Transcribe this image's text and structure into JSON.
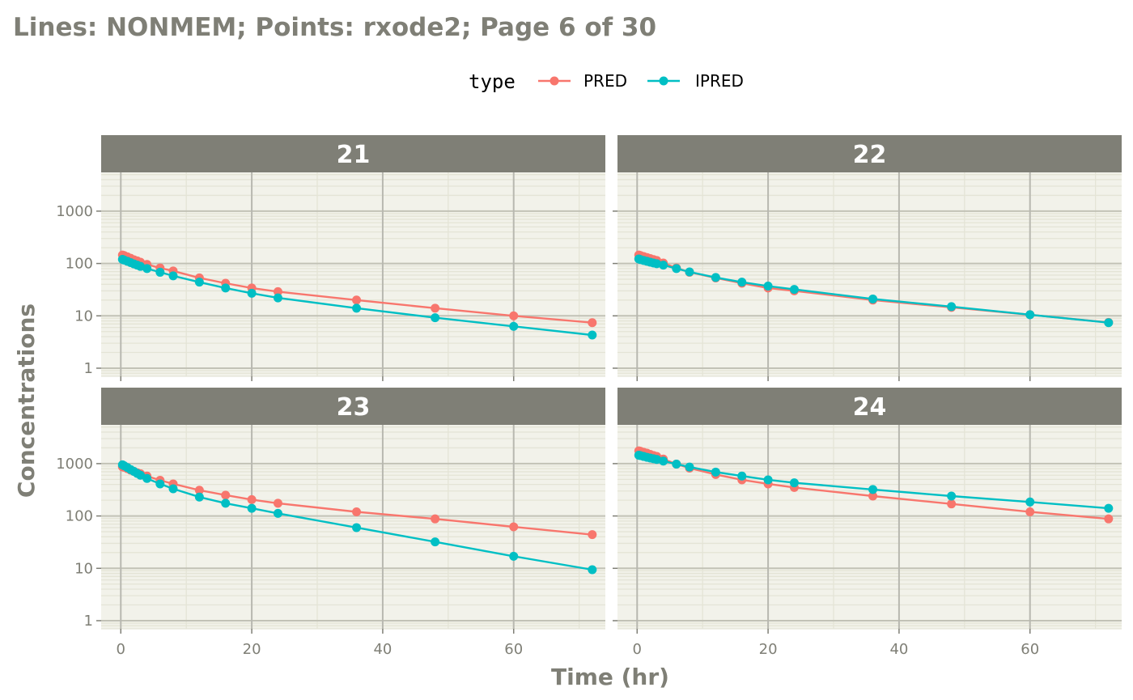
{
  "chart_data": {
    "type": "line",
    "title": "Lines: NONMEM; Points: rxode2; Page 6 of 30",
    "xlabel": "Time (hr)",
    "ylabel": "Concentrations",
    "xlim": [
      -3,
      74
    ],
    "xticks": [
      0,
      20,
      40,
      60
    ],
    "y_scale": "log10",
    "ylim": [
      0.7,
      5500
    ],
    "yticks": [
      1,
      10,
      100,
      1000
    ],
    "ytick_labels": [
      "1",
      "10",
      "100",
      "1000"
    ],
    "grid": true,
    "legend": {
      "title": "type",
      "position": "top",
      "entries": [
        {
          "label": "PRED",
          "color": "#F8766D"
        },
        {
          "label": "IPRED",
          "color": "#00BFC4"
        }
      ]
    },
    "colors": {
      "PRED": "#F8766D",
      "IPRED": "#00BFC4",
      "strip": "#7f7f76",
      "panel_bg": "#f2f2ea"
    },
    "panels": [
      {
        "id": "21",
        "x": [
          0.25,
          0.5,
          1,
          1.5,
          2,
          2.5,
          3,
          4,
          6,
          8,
          12,
          16,
          20,
          24,
          36,
          48,
          60,
          72
        ],
        "series": [
          {
            "name": "PRED",
            "values": [
              145,
              142,
              134,
              126,
              118,
              112,
              106,
              96,
              82,
              72,
              53,
              42,
              34,
              29,
              20,
              14,
              10,
              7.4
            ]
          },
          {
            "name": "IPRED",
            "values": [
              120,
              116,
              110,
              104,
              98,
              93,
              88,
              80,
              68,
              58,
              44,
              34,
              27,
              22,
              14,
              9.2,
              6.3,
              4.3
            ]
          }
        ]
      },
      {
        "id": "22",
        "x": [
          0.25,
          0.5,
          1,
          1.5,
          2,
          2.5,
          3,
          4,
          6,
          8,
          12,
          16,
          20,
          24,
          36,
          48,
          60,
          72
        ],
        "series": [
          {
            "name": "PRED",
            "values": [
              145,
              142,
              136,
              130,
              124,
              119,
              114,
              102,
              82,
              68,
              53,
              42,
              34,
              30,
              20,
              14.5,
              10.5,
              7.5
            ]
          },
          {
            "name": "IPRED",
            "values": [
              122,
              119,
              114,
              110,
              106,
              102,
              99,
              93,
              80,
              69,
              54,
              44,
              37,
              32,
              21,
              15,
              10.5,
              7.4
            ]
          }
        ]
      },
      {
        "id": "23",
        "x": [
          0.25,
          0.5,
          1,
          1.5,
          2,
          2.5,
          3,
          4,
          6,
          8,
          12,
          16,
          20,
          24,
          36,
          48,
          60,
          72
        ],
        "series": [
          {
            "name": "PRED",
            "values": [
              870,
              850,
              800,
              750,
              710,
              670,
              640,
              580,
              480,
              410,
              310,
              250,
              205,
              175,
              120,
              88,
              62,
              44
            ]
          },
          {
            "name": "IPRED",
            "values": [
              950,
              910,
              840,
              770,
              710,
              650,
              600,
              520,
              410,
              330,
              230,
              175,
              140,
              112,
              60,
              32,
              17,
              9.4
            ]
          }
        ]
      },
      {
        "id": "24",
        "x": [
          0.25,
          0.5,
          1,
          1.5,
          2,
          2.5,
          3,
          4,
          6,
          8,
          12,
          16,
          20,
          24,
          36,
          48,
          60,
          72
        ],
        "series": [
          {
            "name": "PRED",
            "values": [
              1750,
              1720,
              1650,
              1580,
              1500,
              1430,
              1370,
              1220,
              980,
              820,
              620,
              490,
              410,
              350,
              240,
              170,
              120,
              88
            ]
          },
          {
            "name": "IPRED",
            "values": [
              1450,
              1420,
              1370,
              1320,
              1280,
              1240,
              1200,
              1120,
              980,
              860,
              690,
              580,
              490,
              430,
              320,
              240,
              185,
              140
            ]
          }
        ]
      }
    ]
  }
}
